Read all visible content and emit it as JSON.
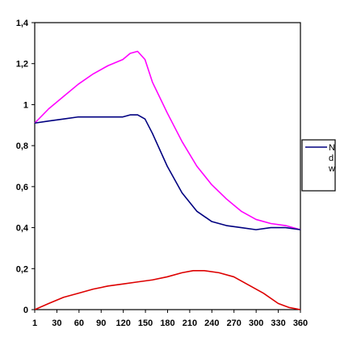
{
  "chart_data": {
    "type": "line",
    "x": [
      1,
      30,
      60,
      90,
      120,
      140,
      150,
      180,
      210,
      240,
      270,
      300,
      330,
      360
    ],
    "x_tick_labels": [
      "1",
      "30",
      "60",
      "90",
      "120",
      "150",
      "180",
      "210",
      "240",
      "270",
      "300",
      "330",
      "360"
    ],
    "y_tick_labels": [
      "0",
      "0,2",
      "0,4",
      "0,6",
      "0,8",
      "1",
      "1,2",
      "1,4"
    ],
    "ylim": [
      0,
      1.4
    ],
    "xlim": [
      1,
      360
    ],
    "grid": false,
    "legend_position": "right",
    "legend_labels": [
      "N",
      "d",
      "w"
    ],
    "series": [
      {
        "color": "#ff00ff",
        "x": [
          1,
          20,
          40,
          60,
          80,
          100,
          120,
          130,
          140,
          150,
          160,
          180,
          200,
          220,
          240,
          260,
          280,
          300,
          320,
          340,
          360
        ],
        "values": [
          0.91,
          0.98,
          1.04,
          1.1,
          1.15,
          1.19,
          1.22,
          1.25,
          1.26,
          1.22,
          1.11,
          0.96,
          0.82,
          0.7,
          0.61,
          0.54,
          0.48,
          0.44,
          0.42,
          0.41,
          0.39
        ]
      },
      {
        "color": "#000080",
        "x": [
          1,
          20,
          40,
          60,
          80,
          100,
          120,
          130,
          140,
          150,
          160,
          180,
          200,
          220,
          240,
          260,
          280,
          300,
          320,
          340,
          360
        ],
        "values": [
          0.91,
          0.92,
          0.93,
          0.94,
          0.94,
          0.94,
          0.94,
          0.95,
          0.95,
          0.93,
          0.86,
          0.7,
          0.57,
          0.48,
          0.43,
          0.41,
          0.4,
          0.39,
          0.4,
          0.4,
          0.39
        ]
      },
      {
        "color": "#dd0000",
        "x": [
          1,
          20,
          40,
          60,
          80,
          100,
          120,
          140,
          160,
          180,
          200,
          215,
          230,
          250,
          270,
          290,
          310,
          330,
          345,
          360
        ],
        "values": [
          0.0,
          0.03,
          0.06,
          0.08,
          0.1,
          0.115,
          0.125,
          0.135,
          0.145,
          0.16,
          0.18,
          0.19,
          0.19,
          0.18,
          0.16,
          0.12,
          0.08,
          0.03,
          0.01,
          0.0
        ]
      }
    ]
  }
}
